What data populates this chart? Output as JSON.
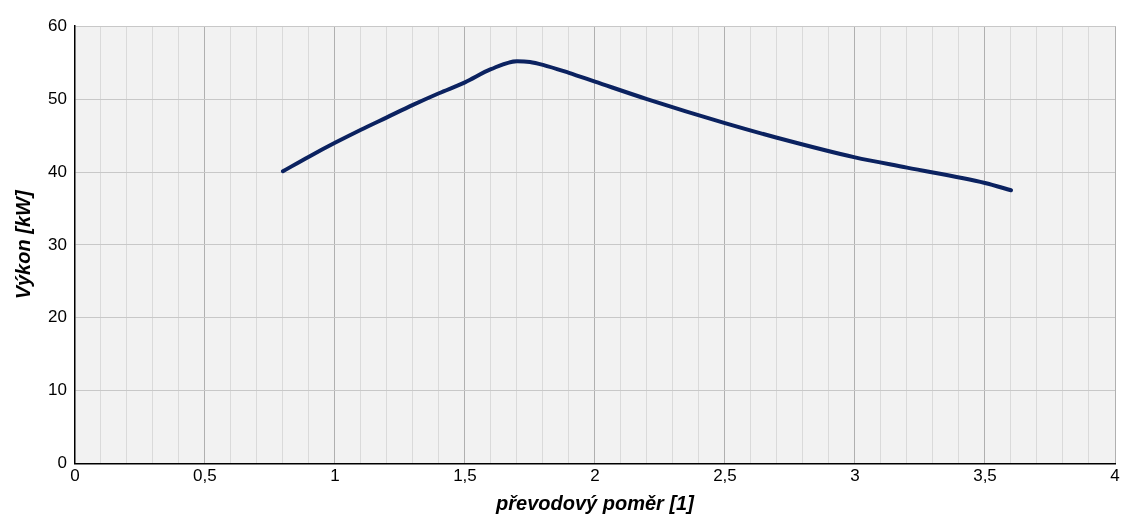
{
  "chart_data": {
    "type": "line",
    "xlabel": "převodový poměr [1]",
    "ylabel": "Výkon [kW]",
    "xlim": [
      0,
      4
    ],
    "ylim": [
      0,
      60
    ],
    "xticks": [
      0,
      {
        "value": 0.1,
        "label": null
      },
      {
        "value": 0.2,
        "label": null
      },
      {
        "value": 0.3,
        "label": null
      },
      {
        "value": 0.4,
        "label": null
      },
      {
        "value": 0.5,
        "label": "0,5"
      },
      {
        "value": 0.6,
        "label": null
      },
      {
        "value": 0.7,
        "label": null
      },
      {
        "value": 0.8,
        "label": null
      },
      {
        "value": 0.9,
        "label": null
      },
      1,
      {
        "value": 1.1,
        "label": null
      },
      {
        "value": 1.2,
        "label": null
      },
      {
        "value": 1.3,
        "label": null
      },
      {
        "value": 1.4,
        "label": null
      },
      {
        "value": 1.5,
        "label": "1,5"
      },
      {
        "value": 1.6,
        "label": null
      },
      {
        "value": 1.7,
        "label": null
      },
      {
        "value": 1.8,
        "label": null
      },
      {
        "value": 1.9,
        "label": null
      },
      2,
      {
        "value": 2.1,
        "label": null
      },
      {
        "value": 2.2,
        "label": null
      },
      {
        "value": 2.3,
        "label": null
      },
      {
        "value": 2.4,
        "label": null
      },
      {
        "value": 2.5,
        "label": "2,5"
      },
      {
        "value": 2.6,
        "label": null
      },
      {
        "value": 2.7,
        "label": null
      },
      {
        "value": 2.8,
        "label": null
      },
      {
        "value": 2.9,
        "label": null
      },
      3,
      {
        "value": 3.1,
        "label": null
      },
      {
        "value": 3.2,
        "label": null
      },
      {
        "value": 3.3,
        "label": null
      },
      {
        "value": 3.4,
        "label": null
      },
      {
        "value": 3.5,
        "label": "3,5"
      },
      {
        "value": 3.6,
        "label": null
      },
      {
        "value": 3.7,
        "label": null
      },
      {
        "value": 3.8,
        "label": null
      },
      {
        "value": 3.9,
        "label": null
      },
      4
    ],
    "yticks": [
      0,
      10,
      20,
      30,
      40,
      50,
      60
    ],
    "grid": true,
    "marker": "none",
    "line_style": "solid",
    "series": [
      {
        "color": "#0b2260",
        "x": [
          0.8,
          0.9,
          1.0,
          1.1,
          1.2,
          1.3,
          1.4,
          1.5,
          1.6,
          1.7,
          1.75,
          1.8,
          1.9,
          2.0,
          2.2,
          2.5,
          2.7,
          3.0,
          3.2,
          3.5,
          3.6
        ],
        "values": [
          40.1,
          42.1,
          44.0,
          45.8,
          47.5,
          49.2,
          50.8,
          52.3,
          54.1,
          55.2,
          55.1,
          54.7,
          53.6,
          52.4,
          50.0,
          46.7,
          44.7,
          42.0,
          40.6,
          38.5,
          37.5
        ]
      }
    ]
  }
}
